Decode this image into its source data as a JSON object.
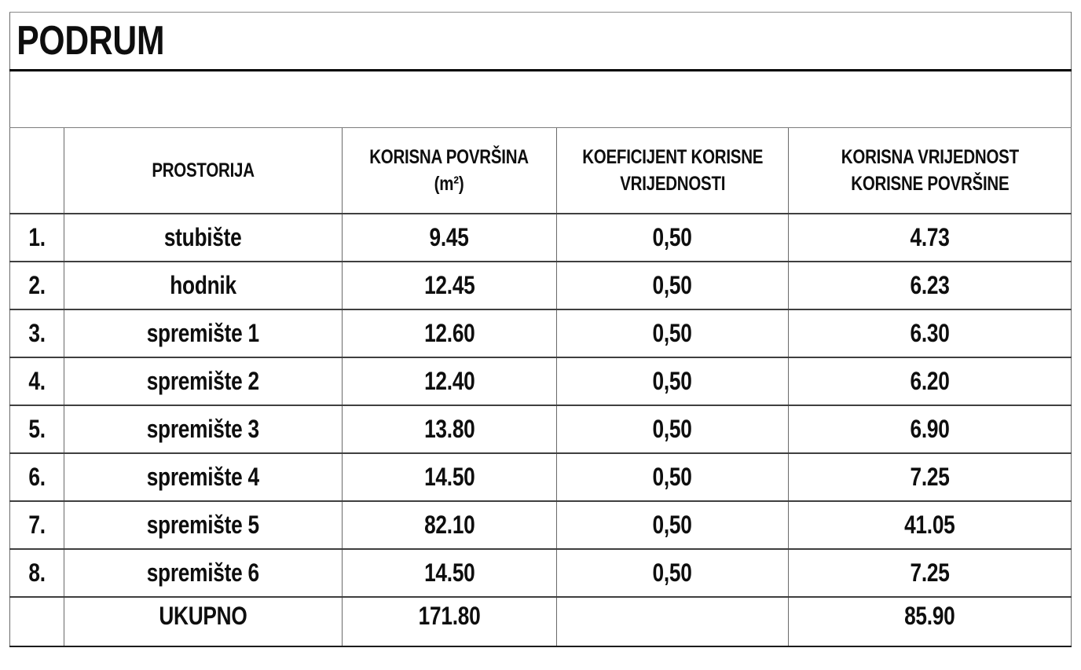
{
  "page": {
    "background": "#ffffff"
  },
  "colors": {
    "text": "#0e0e0e",
    "grid_vertical": "#6a6a6a",
    "grid_horizontal": "#3f3f3f",
    "title_rule": "#000000"
  },
  "title": "PODRUM",
  "table": {
    "headers": {
      "index": "",
      "room": "PROSTORIJA",
      "area": "KORISNA POVRŠINA\n(m²)",
      "coefficient": "KOEFICIJENT KORISNE\nVRIJEDNOSTI",
      "value": "KORISNA VRIJEDNOST\nKORISNE POVRŠINE"
    },
    "rows": [
      {
        "num": "1.",
        "room": "stubište",
        "area": "9.45",
        "coefficient": "0,50",
        "value": "4.73"
      },
      {
        "num": "2.",
        "room": "hodnik",
        "area": "12.45",
        "coefficient": "0,50",
        "value": "6.23"
      },
      {
        "num": "3.",
        "room": "spremište 1",
        "area": "12.60",
        "coefficient": "0,50",
        "value": "6.30"
      },
      {
        "num": "4.",
        "room": "spremište 2",
        "area": "12.40",
        "coefficient": "0,50",
        "value": "6.20"
      },
      {
        "num": "5.",
        "room": "spremište 3",
        "area": "13.80",
        "coefficient": "0,50",
        "value": "6.90"
      },
      {
        "num": "6.",
        "room": "spremište 4",
        "area": "14.50",
        "coefficient": "0,50",
        "value": "7.25"
      },
      {
        "num": "7.",
        "room": "spremište 5",
        "area": "82.10",
        "coefficient": "0,50",
        "value": "41.05"
      },
      {
        "num": "8.",
        "room": "spremište 6",
        "area": "14.50",
        "coefficient": "0,50",
        "value": "7.25"
      }
    ],
    "total": {
      "label": "UKUPNO",
      "area": "171.80",
      "coefficient": "",
      "value": "85.90"
    }
  }
}
